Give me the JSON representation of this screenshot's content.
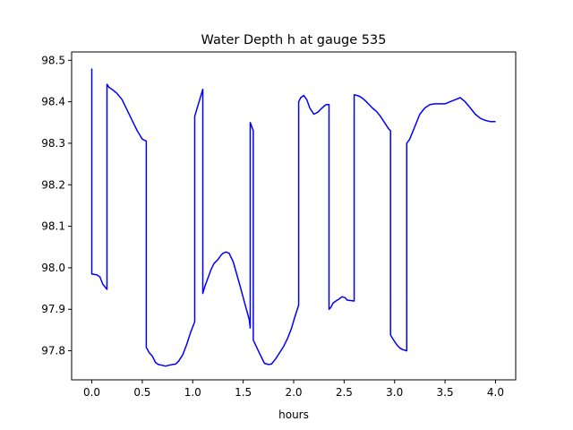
{
  "chart_data": {
    "type": "line",
    "title": "Water Depth h at gauge 535",
    "xlabel": "hours",
    "ylabel": "",
    "xlim": [
      -0.2,
      4.2
    ],
    "ylim": [
      97.73,
      98.52
    ],
    "xticks": [
      0.0,
      0.5,
      1.0,
      1.5,
      2.0,
      2.5,
      3.0,
      3.5,
      4.0
    ],
    "xtick_labels": [
      "0.0",
      "0.5",
      "1.0",
      "1.5",
      "2.0",
      "2.5",
      "3.0",
      "3.5",
      "4.0"
    ],
    "yticks": [
      97.8,
      97.9,
      98.0,
      98.1,
      98.2,
      98.3,
      98.4,
      98.5
    ],
    "ytick_labels": [
      "97.8",
      "97.9",
      "98.0",
      "98.1",
      "98.2",
      "98.3",
      "98.4",
      "98.5"
    ],
    "grid": false,
    "series": [
      {
        "color": "#0000ff",
        "x": [
          0.0,
          0.0,
          0.05,
          0.08,
          0.11,
          0.15,
          0.15,
          0.17,
          0.2,
          0.25,
          0.3,
          0.35,
          0.4,
          0.45,
          0.5,
          0.54,
          0.54,
          0.57,
          0.6,
          0.63,
          0.66,
          0.7,
          0.73,
          0.76,
          0.8,
          0.83,
          0.86,
          0.9,
          0.94,
          0.98,
          1.02,
          1.02,
          1.1,
          1.1,
          1.12,
          1.15,
          1.18,
          1.21,
          1.25,
          1.28,
          1.3,
          1.33,
          1.36,
          1.4,
          1.43,
          1.47,
          1.52,
          1.56,
          1.57,
          1.57,
          1.6,
          1.6,
          1.6,
          1.62,
          1.65,
          1.68,
          1.71,
          1.75,
          1.78,
          1.82,
          1.86,
          1.9,
          1.94,
          1.98,
          2.01,
          2.05,
          2.05,
          2.07,
          2.1,
          2.13,
          2.16,
          2.2,
          2.24,
          2.28,
          2.32,
          2.35,
          2.35,
          2.37,
          2.39,
          2.42,
          2.45,
          2.48,
          2.51,
          2.53,
          2.6,
          2.6,
          2.63,
          2.66,
          2.7,
          2.74,
          2.78,
          2.82,
          2.86,
          2.9,
          2.94,
          2.96,
          2.96,
          2.99,
          3.02,
          3.05,
          3.08,
          3.12,
          3.12,
          3.15,
          3.2,
          3.25,
          3.3,
          3.35,
          3.4,
          3.45,
          3.5,
          3.55,
          3.6,
          3.65,
          3.7,
          3.75,
          3.8,
          3.85,
          3.9,
          3.95,
          4.0
        ],
        "y": [
          98.48,
          97.985,
          97.983,
          97.978,
          97.96,
          97.948,
          98.442,
          98.435,
          98.43,
          98.42,
          98.405,
          98.38,
          98.355,
          98.33,
          98.31,
          98.305,
          97.808,
          97.795,
          97.787,
          97.772,
          97.767,
          97.765,
          97.763,
          97.765,
          97.767,
          97.768,
          97.775,
          97.79,
          97.815,
          97.845,
          97.87,
          98.365,
          98.43,
          97.938,
          97.955,
          97.975,
          97.995,
          98.01,
          98.02,
          98.03,
          98.035,
          98.038,
          98.035,
          98.015,
          97.99,
          97.955,
          97.91,
          97.875,
          97.855,
          98.35,
          98.33,
          97.97,
          97.826,
          97.815,
          97.8,
          97.785,
          97.77,
          97.767,
          97.768,
          97.78,
          97.795,
          97.81,
          97.83,
          97.855,
          97.88,
          97.91,
          98.4,
          98.41,
          98.415,
          98.405,
          98.385,
          98.37,
          98.375,
          98.385,
          98.393,
          98.393,
          97.9,
          97.905,
          97.915,
          97.92,
          97.925,
          97.93,
          97.928,
          97.922,
          97.92,
          98.417,
          98.415,
          98.412,
          98.405,
          98.395,
          98.385,
          98.377,
          98.365,
          98.35,
          98.335,
          98.33,
          97.838,
          97.826,
          97.815,
          97.807,
          97.803,
          97.8,
          98.3,
          98.31,
          98.34,
          98.37,
          98.385,
          98.393,
          98.395,
          98.395,
          98.395,
          98.4,
          98.405,
          98.41,
          98.4,
          98.385,
          98.37,
          98.36,
          98.355,
          98.352,
          98.352
        ]
      }
    ]
  }
}
